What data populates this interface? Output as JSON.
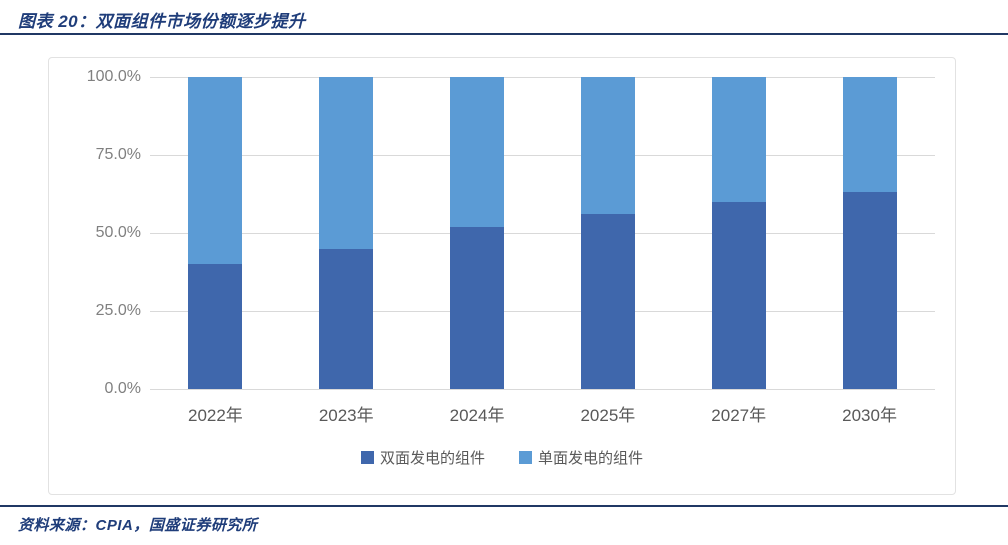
{
  "figure": {
    "title": "图表 20：双面组件市场份额逐步提升",
    "source": "资料来源：CPIA，国盛证券研究所"
  },
  "colors": {
    "title_navy": "#1f3d7a",
    "divider_navy": "#203864",
    "grid_gray": "#d9d9d9",
    "axis_label_gray": "#808080",
    "category_label_gray": "#595959",
    "bifacial_dark_blue": "#3f67ac",
    "monofacial_light_blue": "#5b9bd5"
  },
  "chart_data": {
    "type": "bar",
    "stacked": true,
    "percent_stacked": true,
    "title": "双面组件市场份额逐步提升",
    "categories": [
      "2022年",
      "2023年",
      "2024年",
      "2025年",
      "2027年",
      "2030年"
    ],
    "series": [
      {
        "name": "双面发电的组件",
        "color": "#3f67ac",
        "values": [
          40,
          45,
          52,
          56,
          60,
          63
        ]
      },
      {
        "name": "单面发电的组件",
        "color": "#5b9bd5",
        "values": [
          60,
          55,
          48,
          44,
          40,
          37
        ]
      }
    ],
    "xlabel": "",
    "ylabel": "",
    "ylim": [
      0,
      100
    ],
    "yticks": [
      {
        "value": 100,
        "label": "100.0%"
      },
      {
        "value": 75,
        "label": "75.0%"
      },
      {
        "value": 50,
        "label": "50.0%"
      },
      {
        "value": 25,
        "label": "25.0%"
      },
      {
        "value": 0,
        "label": "0.0%"
      }
    ],
    "grid": true,
    "legend_position": "bottom"
  }
}
